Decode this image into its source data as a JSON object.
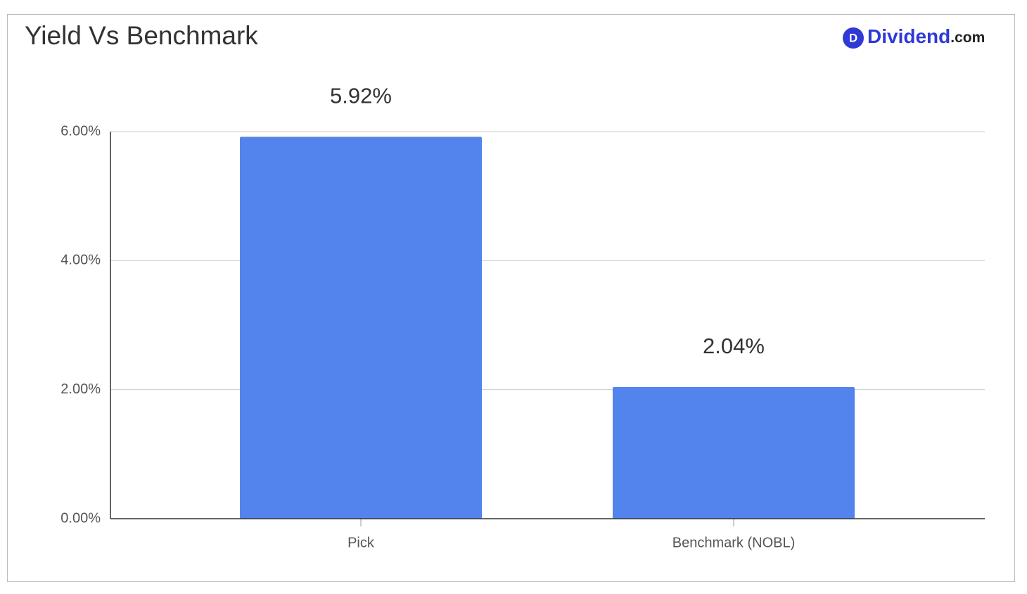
{
  "chart_data": {
    "type": "bar",
    "title": "Yield Vs Benchmark",
    "brand": {
      "logo": "D",
      "name": "Dividend",
      "suffix": ".com"
    },
    "categories": [
      "Pick",
      "Benchmark (NOBL)"
    ],
    "values": [
      5.92,
      2.04
    ],
    "value_labels": [
      "5.92%",
      "2.04%"
    ],
    "color": "#5383ec",
    "ylim": [
      0,
      6
    ],
    "yticks": [
      {
        "value": 0,
        "label": "0.00%"
      },
      {
        "value": 2,
        "label": "2.00%"
      },
      {
        "value": 4,
        "label": "4.00%"
      },
      {
        "value": 6,
        "label": "6.00%"
      }
    ],
    "grid": true
  }
}
